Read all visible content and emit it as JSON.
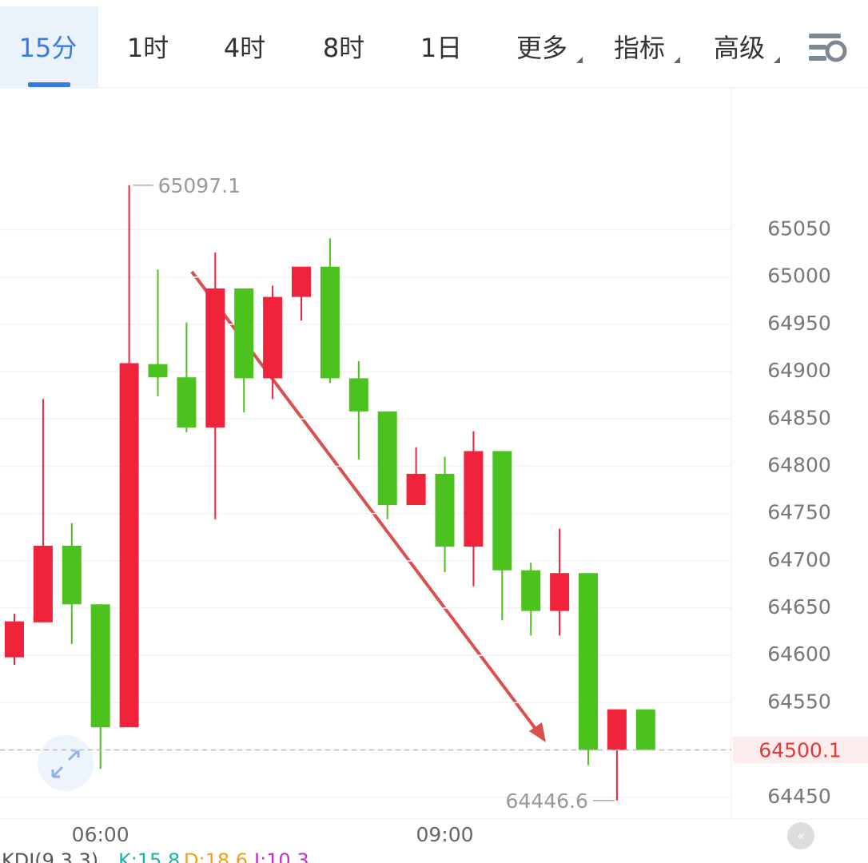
{
  "tabs": [
    "15分",
    "1时",
    "4时",
    "8时",
    "1日",
    "更多",
    "指标",
    "高级"
  ],
  "chart_data": {
    "type": "candlestick",
    "categories": [
      null,
      null,
      null,
      "06:00",
      null,
      null,
      null,
      null,
      null,
      null,
      null,
      null,
      null,
      null,
      null,
      "09:00",
      null,
      null,
      null,
      null,
      null,
      null,
      null
    ],
    "open": [
      64598,
      64635,
      64716,
      64654,
      64524,
      64908,
      64894,
      64841,
      64988,
      64893,
      64979,
      65011,
      64893,
      64858,
      64759,
      64792,
      64715,
      64816,
      64690,
      64647,
      64687,
      64500,
      64543
    ],
    "high": [
      64644,
      64871,
      64740,
      64654,
      65097.1,
      65008,
      64952,
      65026,
      64988,
      64991,
      65011,
      65041,
      64911,
      64858,
      64820,
      64810,
      64837,
      64816,
      64698,
      64734,
      64687,
      64543,
      64543
    ],
    "low": [
      64590,
      64635,
      64612,
      64480,
      64524,
      64874,
      64836,
      64744,
      64857,
      64871,
      64954,
      64888,
      64807,
      64744,
      64759,
      64688,
      64673,
      64637,
      64621,
      64621,
      64484,
      64446.6,
      64500.1
    ],
    "close": [
      64636,
      64716,
      64654,
      64524,
      64909,
      64894,
      64841,
      64988,
      64893,
      64979,
      65011,
      64893,
      64858,
      64759,
      64792,
      64715,
      64816,
      64690,
      64647,
      64687,
      64500,
      64543,
      64500.1
    ],
    "up_color": "#f0233a",
    "down_color": "#4cc21f",
    "ylim": [
      64427,
      65200
    ],
    "yticks": [
      64450,
      64500,
      64550,
      64600,
      64650,
      64700,
      64750,
      64800,
      64850,
      64900,
      64950,
      65000,
      65050
    ],
    "grid": true,
    "indicator": {
      "name": "KDJ(9,3,3)",
      "items": [
        {
          "label": "K:15.8",
          "color": "#1bb3a6"
        },
        {
          "label": "D:18.6",
          "color": "#f0a020"
        },
        {
          "label": "J:10.3",
          "color": "#c030c0"
        }
      ]
    }
  }
}
